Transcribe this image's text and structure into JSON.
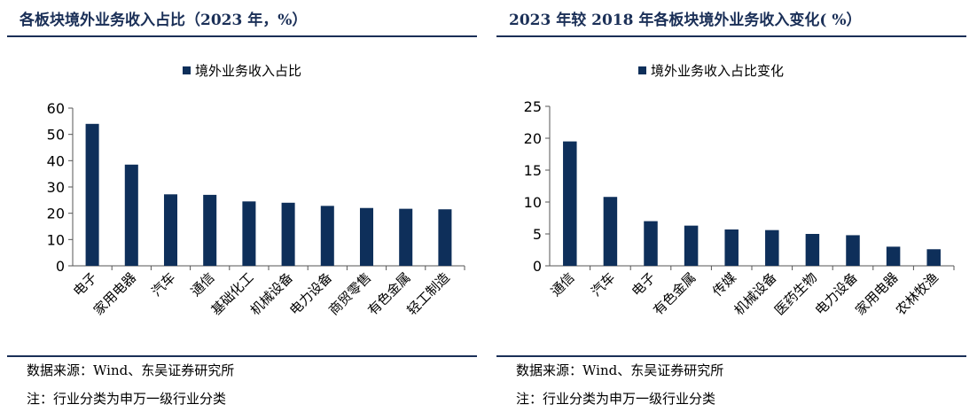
{
  "chart_data": [
    {
      "type": "bar",
      "title": "各板块境外业务收入占比（2023 年，%）",
      "categories": [
        "电子",
        "家用电器",
        "汽车",
        "通信",
        "基础化工",
        "机械设备",
        "电力设备",
        "商贸零售",
        "有色金属",
        "轻工制造"
      ],
      "series": [
        {
          "name": "境外业务收入占比",
          "values": [
            54.0,
            38.5,
            27.2,
            27.0,
            24.5,
            24.0,
            22.8,
            22.0,
            21.7,
            21.5
          ]
        }
      ],
      "ylim": [
        0,
        60
      ],
      "yticks": [
        0,
        10,
        20,
        30,
        40,
        50,
        60
      ],
      "legend": "top-center",
      "grid": false,
      "color": "#0e2f5a",
      "source": "数据来源：Wind、东吴证券研究所",
      "note": "注：行业分类为申万一级行业分类"
    },
    {
      "type": "bar",
      "title": "2023 年较 2018 年各板块境外业务收入变化( %）",
      "categories": [
        "通信",
        "汽车",
        "电子",
        "有色金属",
        "传媒",
        "机械设备",
        "医药生物",
        "电力设备",
        "家用电器",
        "农林牧渔"
      ],
      "series": [
        {
          "name": "境外业务收入占比变化",
          "values": [
            19.5,
            10.8,
            7.0,
            6.3,
            5.7,
            5.6,
            5.0,
            4.8,
            3.0,
            2.6
          ]
        }
      ],
      "ylim": [
        0,
        25
      ],
      "yticks": [
        0,
        5,
        10,
        15,
        20,
        25
      ],
      "legend": "top-center",
      "grid": false,
      "color": "#0e2f5a",
      "source": "数据来源：Wind、东吴证券研究所",
      "note": "注：行业分类为申万一级行业分类"
    }
  ]
}
